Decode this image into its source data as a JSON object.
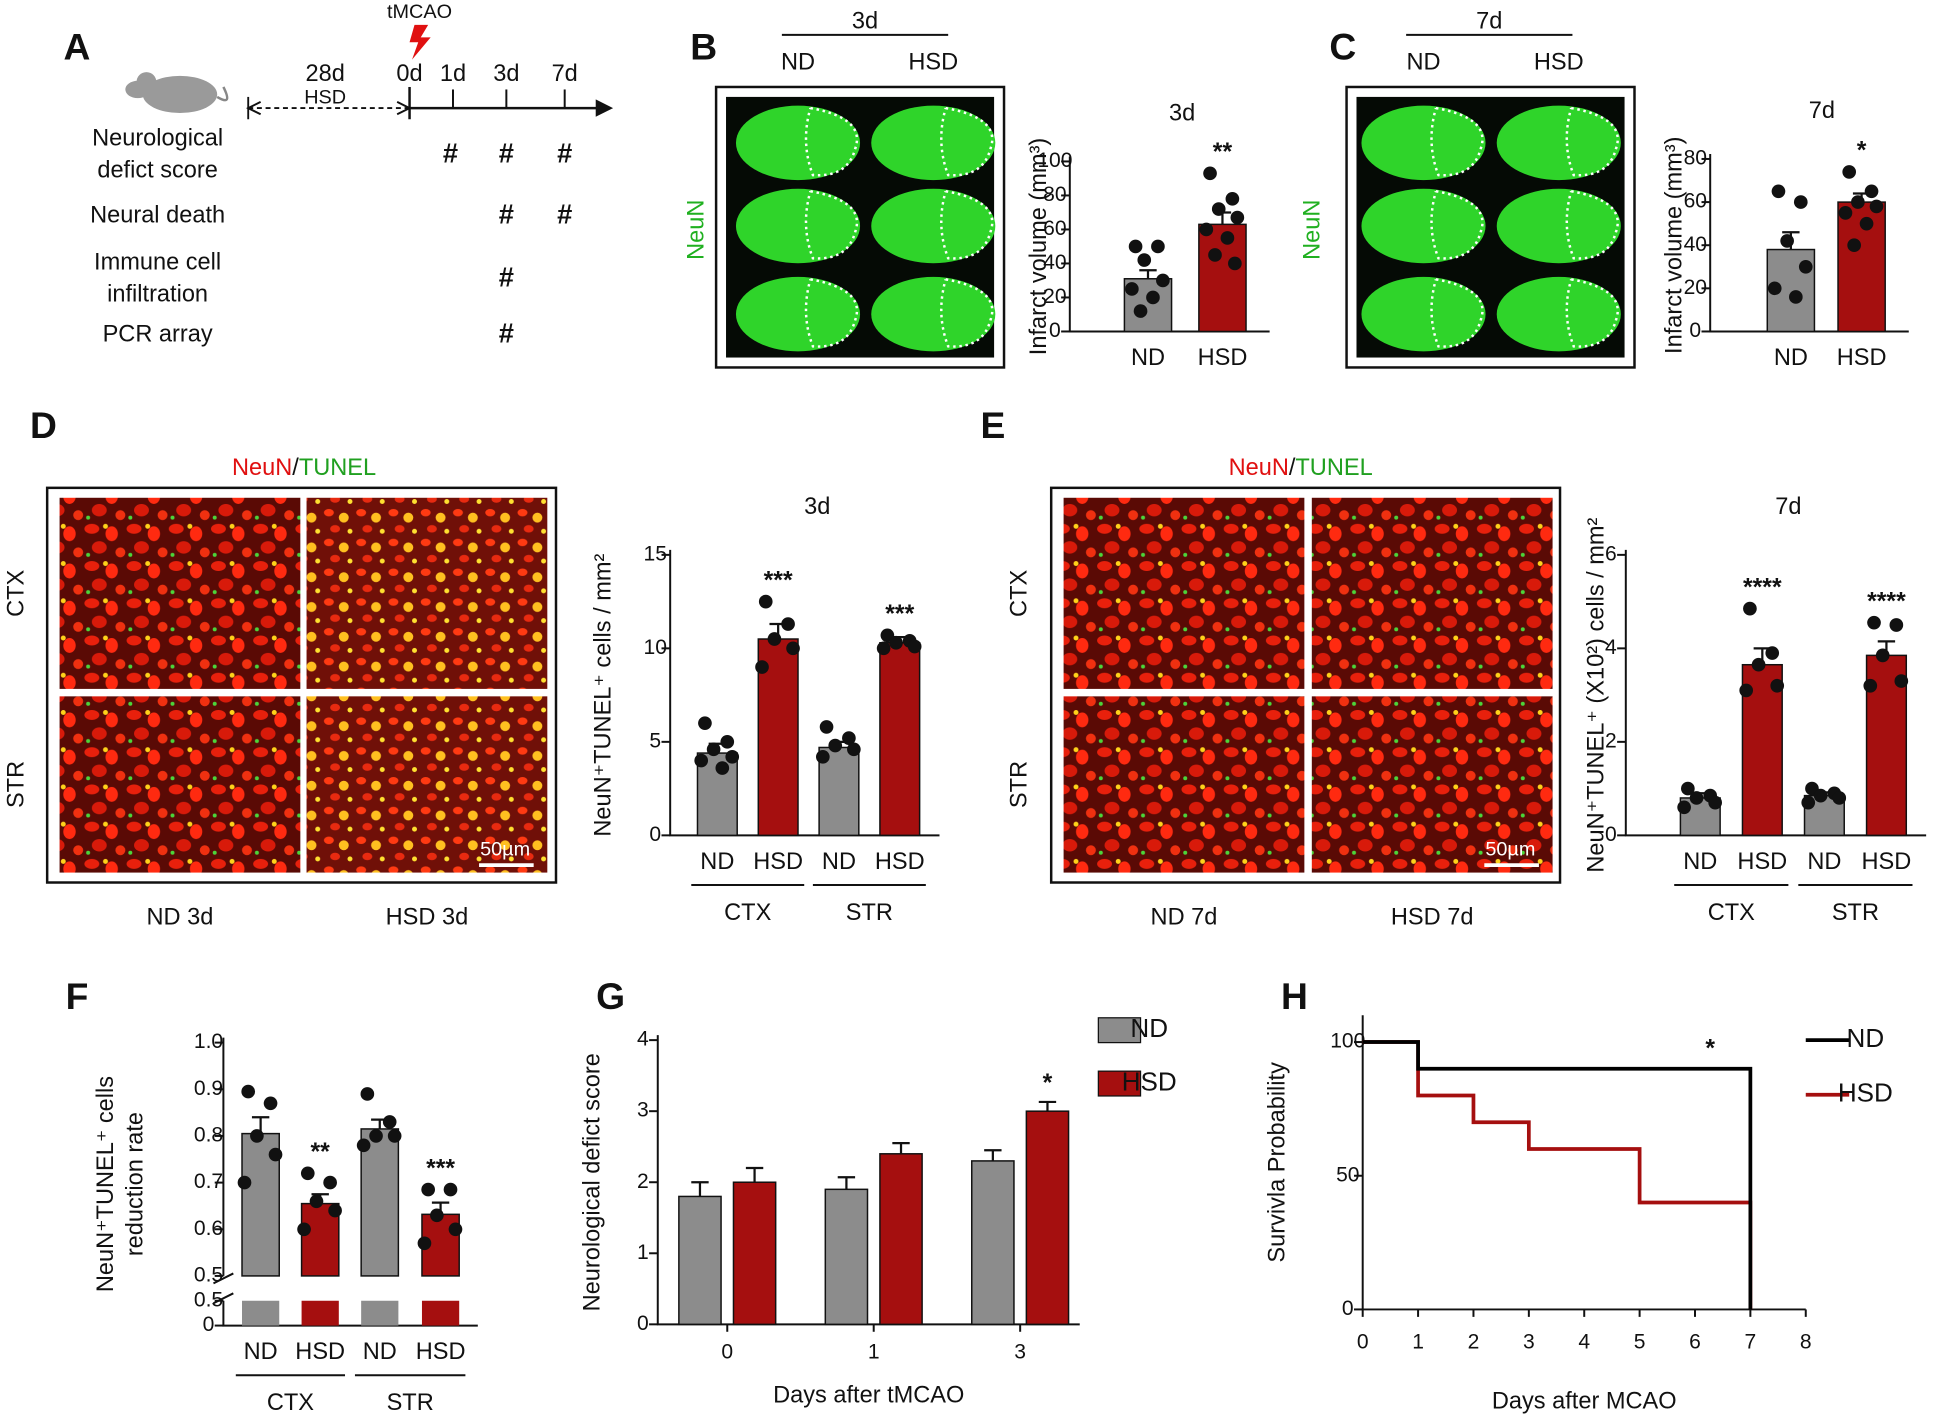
{
  "panel_letters": [
    "A",
    "B",
    "C",
    "D",
    "E",
    "F",
    "G",
    "H"
  ],
  "timeline": {
    "event": "tMCAO",
    "diet_days": "28d",
    "diet": "HSD",
    "days": [
      "0d",
      "1d",
      "3d",
      "7d"
    ],
    "rows": [
      {
        "label": [
          "Neurological",
          "defict score"
        ],
        "marks": [
          "#",
          "#",
          "#"
        ]
      },
      {
        "label": [
          "Neural death"
        ],
        "marks": [
          null,
          "#",
          "#"
        ]
      },
      {
        "label": [
          "Immune cell",
          "infiltration"
        ],
        "marks": [
          null,
          "#",
          null
        ]
      },
      {
        "label": [
          "PCR array"
        ],
        "marks": [
          null,
          "#",
          null
        ]
      }
    ]
  },
  "images": [
    {
      "header": "3d",
      "columns": [
        "ND",
        "HSD"
      ],
      "stain": [
        "NeuN"
      ]
    },
    {
      "header": "7d",
      "columns": [
        "ND",
        "HSD"
      ],
      "stain": [
        "NeuN"
      ]
    },
    {
      "stain": [
        "NeuN",
        "/",
        "TUNEL"
      ],
      "rows": [
        "CTX",
        "STR"
      ],
      "columns": [
        "ND 3d",
        "HSD 3d"
      ],
      "scale": "50µm"
    },
    {
      "stain": [
        "NeuN",
        "/",
        "TUNEL"
      ],
      "rows": [
        "CTX",
        "STR"
      ],
      "columns": [
        "ND 7d",
        "HSD 7d"
      ],
      "scale": "50µm"
    }
  ],
  "chart_data": [
    {
      "type": "bar",
      "title": "3d",
      "ylabel": [
        "Infarct volume (mm³)"
      ],
      "categories": [
        "ND",
        "HSD"
      ],
      "values": [
        31,
        63
      ],
      "errors": [
        5,
        7
      ],
      "colors": [
        "#8c8c8c",
        "#a50f0f"
      ],
      "points": [
        [
          50,
          50,
          42,
          30,
          25,
          20,
          12
        ],
        [
          93,
          78,
          72,
          67,
          60,
          55,
          45,
          40
        ]
      ],
      "annotations": [
        {
          "at": 1,
          "text": "**"
        }
      ],
      "ylim": [
        0,
        100
      ],
      "yticks": [
        0,
        20,
        40,
        60,
        80,
        100
      ]
    },
    {
      "type": "bar",
      "title": "7d",
      "ylabel": [
        "Infarct volume (mm³)"
      ],
      "categories": [
        "ND",
        "HSD"
      ],
      "values": [
        38,
        60
      ],
      "errors": [
        8,
        4
      ],
      "colors": [
        "#8c8c8c",
        "#a50f0f"
      ],
      "points": [
        [
          65,
          60,
          42,
          30,
          20,
          16
        ],
        [
          74,
          65,
          60,
          58,
          55,
          50,
          40
        ]
      ],
      "annotations": [
        {
          "at": 1,
          "text": "*"
        }
      ],
      "ylim": [
        0,
        80
      ],
      "yticks": [
        0,
        20,
        40,
        60,
        80
      ]
    },
    {
      "type": "bar",
      "title": "3d",
      "ylabel": [
        "NeuN⁺TUNEL⁺ cells / mm²"
      ],
      "categories": [
        "ND",
        "HSD",
        "ND",
        "HSD"
      ],
      "groups": [
        {
          "label": "CTX",
          "size": 2
        },
        {
          "label": "STR",
          "size": 2
        }
      ],
      "values": [
        4.4,
        10.5,
        4.7,
        10.3
      ],
      "errors": [
        0.5,
        0.8,
        0.3,
        0.3
      ],
      "colors": [
        "#8c8c8c",
        "#a50f0f",
        "#8c8c8c",
        "#a50f0f"
      ],
      "points": [
        [
          6.0,
          5.0,
          4.6,
          4.2,
          4.0,
          3.6
        ],
        [
          12.5,
          11.3,
          10.5,
          10.0,
          9.0
        ],
        [
          5.8,
          5.2,
          4.8,
          4.6,
          4.2
        ],
        [
          10.7,
          10.4,
          10.3,
          10.1,
          10.0
        ]
      ],
      "annotations": [
        {
          "at": 1,
          "text": "***"
        },
        {
          "at": 3,
          "text": "***"
        }
      ],
      "ylim": [
        0,
        15
      ],
      "yticks": [
        0,
        5,
        10,
        15
      ]
    },
    {
      "type": "bar",
      "title": "7d",
      "ylabel": [
        "NeuN⁺TUNEL⁺ (X10²) cells / mm²"
      ],
      "categories": [
        "ND",
        "HSD",
        "ND",
        "HSD"
      ],
      "groups": [
        {
          "label": "CTX",
          "size": 2
        },
        {
          "label": "STR",
          "size": 2
        }
      ],
      "values": [
        0.8,
        3.65,
        0.85,
        3.85
      ],
      "errors": [
        0.1,
        0.35,
        0.07,
        0.3
      ],
      "colors": [
        "#8c8c8c",
        "#a50f0f",
        "#8c8c8c",
        "#a50f0f"
      ],
      "points": [
        [
          1.0,
          0.85,
          0.8,
          0.7,
          0.6
        ],
        [
          4.85,
          3.9,
          3.65,
          3.2,
          3.1
        ],
        [
          1.0,
          0.9,
          0.85,
          0.8,
          0.7
        ],
        [
          4.55,
          4.5,
          3.85,
          3.3,
          3.2
        ]
      ],
      "annotations": [
        {
          "at": 1,
          "text": "****"
        },
        {
          "at": 3,
          "text": "****"
        }
      ],
      "ylim": [
        0,
        6
      ],
      "yticks": [
        0,
        2,
        4,
        6
      ]
    },
    {
      "type": "broken-bar",
      "ylabel": [
        "NeuN⁺TUNEL⁺ cells",
        "reduction rate"
      ],
      "categories": [
        "ND",
        "HSD",
        "ND",
        "HSD"
      ],
      "groups": [
        {
          "label": "CTX",
          "size": 2
        },
        {
          "label": "STR",
          "size": 2
        }
      ],
      "values": [
        0.805,
        0.655,
        0.815,
        0.632
      ],
      "errors": [
        0.035,
        0.02,
        0.02,
        0.025
      ],
      "colors": [
        "#8c8c8c",
        "#a50f0f",
        "#8c8c8c",
        "#a50f0f"
      ],
      "points": [
        [
          0.895,
          0.87,
          0.8,
          0.76,
          0.7
        ],
        [
          0.72,
          0.7,
          0.66,
          0.64,
          0.6
        ],
        [
          0.89,
          0.83,
          0.8,
          0.8,
          0.78
        ],
        [
          0.685,
          0.685,
          0.63,
          0.6,
          0.57
        ]
      ],
      "annotations": [
        {
          "at": 1,
          "text": "**"
        },
        {
          "at": 3,
          "text": "***"
        }
      ],
      "ylim": [
        0.5,
        1.0
      ],
      "yticks": [
        0.5,
        0.6,
        0.7,
        0.8,
        0.9,
        {
          "value": 1.0,
          "label": "1.0"
        }
      ],
      "lower_ylim": [
        0,
        0.5
      ],
      "lower_yticks": [
        0,
        0.5
      ]
    },
    {
      "type": "grouped-bar",
      "xlabel": "Days after tMCAO",
      "ylabel": [
        "Neurological defict score"
      ],
      "categories": [
        "0",
        "1",
        "3"
      ],
      "series": [
        {
          "name": "ND",
          "color": "#8c8c8c",
          "values": [
            1.8,
            1.9,
            2.3
          ],
          "errors": [
            0.2,
            0.17,
            0.15
          ]
        },
        {
          "name": "HSD",
          "color": "#a50f0f",
          "values": [
            2.0,
            2.4,
            3.0
          ],
          "errors": [
            0.2,
            0.15,
            0.13
          ]
        }
      ],
      "annotations": [
        {
          "series": 1,
          "at": 2,
          "text": "*"
        }
      ],
      "ylim": [
        0,
        4
      ],
      "yticks": [
        0,
        1,
        2,
        3,
        4
      ]
    },
    {
      "type": "step",
      "xlabel": "Days after MCAO",
      "ylabel": [
        "Survivla Probability"
      ],
      "series": [
        {
          "name": "ND",
          "color": "#000000",
          "x": [
            0,
            1,
            1,
            7,
            7
          ],
          "values": [
            100,
            100,
            90,
            90,
            0
          ]
        },
        {
          "name": "HSD",
          "color": "#a50f0f",
          "x": [
            0,
            1,
            1,
            2,
            2,
            3,
            3,
            5,
            5,
            7,
            7
          ],
          "values": [
            100,
            100,
            80,
            80,
            70,
            70,
            60,
            60,
            40,
            40,
            0
          ]
        }
      ],
      "annotations": [
        {
          "text": "*"
        }
      ],
      "xlim": [
        0,
        8
      ],
      "xticks": [
        0,
        1,
        2,
        3,
        4,
        5,
        6,
        7,
        8
      ],
      "ylim": [
        0,
        110
      ],
      "yticks": [
        0,
        50,
        100
      ]
    }
  ]
}
